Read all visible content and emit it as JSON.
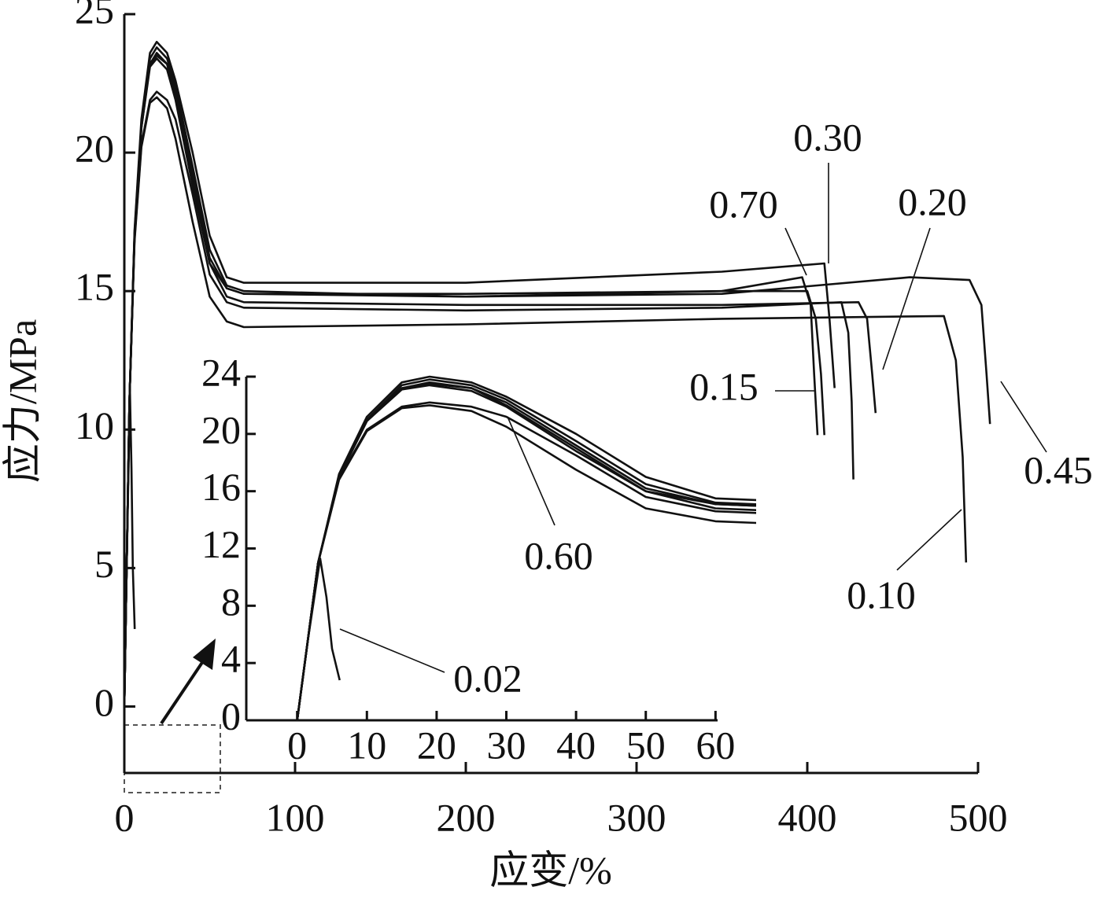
{
  "chart_data": {
    "type": "line",
    "xlabel": "应变/%",
    "ylabel": "应力/MPa",
    "xlim": [
      0,
      500
    ],
    "ylim": [
      -2.4,
      25
    ],
    "xticks": [
      0,
      100,
      200,
      300,
      400,
      500
    ],
    "yticks": [
      0,
      5,
      10,
      15,
      20,
      25
    ],
    "inset": {
      "xlim": [
        -7.3,
        60.3
      ],
      "ylim": [
        0,
        24
      ],
      "xticks": [
        0,
        10,
        20,
        30,
        40,
        50,
        60
      ],
      "yticks": [
        0,
        4,
        8,
        12,
        16,
        20,
        24
      ]
    },
    "series": [
      {
        "name": "0.02",
        "color": "#111111",
        "x": [
          0,
          1.5,
          3.3,
          4.2,
          5,
          6.1
        ],
        "values": [
          0,
          5.5,
          11.3,
          8.6,
          5,
          2.8
        ]
      },
      {
        "name": "0.10",
        "color": "#111111",
        "x": [
          0,
          3,
          6,
          10,
          15,
          19,
          25,
          30,
          40,
          50,
          60,
          70,
          200,
          350,
          480,
          487,
          491,
          493
        ],
        "values": [
          0,
          11,
          16.8,
          20.2,
          21.8,
          22.0,
          21.6,
          20.5,
          17.5,
          14.8,
          13.9,
          13.7,
          13.8,
          14.0,
          14.1,
          12.5,
          9,
          5.2
        ]
      },
      {
        "name": "0.15",
        "color": "#111111",
        "x": [
          0,
          3,
          6,
          10,
          15,
          19,
          25,
          30,
          40,
          50,
          60,
          70,
          200,
          350,
          400,
          405,
          408,
          410
        ],
        "values": [
          0,
          11,
          17,
          20.9,
          23.1,
          23.4,
          23.0,
          21.9,
          18.8,
          16,
          15.1,
          14.9,
          14.9,
          15.0,
          15.0,
          14,
          12,
          9.8
        ]
      },
      {
        "name": "0.20",
        "color": "#111111",
        "x": [
          0,
          3,
          6,
          10,
          15,
          19,
          25,
          30,
          40,
          50,
          60,
          70,
          200,
          350,
          430,
          435,
          438,
          440
        ],
        "values": [
          0,
          11,
          17,
          20.9,
          23.2,
          23.6,
          23.2,
          22,
          19,
          16,
          14.8,
          14.6,
          14.5,
          14.5,
          14.6,
          14,
          12,
          10.6
        ]
      },
      {
        "name": "0.30",
        "color": "#111111",
        "x": [
          0,
          3,
          6,
          10,
          15,
          19,
          25,
          30,
          40,
          50,
          60,
          70,
          200,
          350,
          410,
          413,
          416
        ],
        "values": [
          0,
          11,
          17.2,
          21.2,
          23.6,
          24.0,
          23.6,
          22.6,
          20,
          17,
          15.5,
          15.3,
          15.3,
          15.7,
          16.0,
          14,
          11.5
        ]
      },
      {
        "name": "0.45",
        "color": "#111111",
        "x": [
          0,
          3,
          6,
          10,
          15,
          19,
          25,
          30,
          40,
          50,
          60,
          70,
          200,
          350,
          460,
          495,
          502,
          505,
          507
        ],
        "values": [
          0,
          11,
          17.1,
          21,
          23.4,
          23.8,
          23.4,
          22.4,
          19.5,
          16.5,
          15.2,
          15.0,
          14.8,
          14.9,
          15.5,
          15.4,
          14.5,
          12,
          10.2
        ]
      },
      {
        "name": "0.60",
        "color": "#111111",
        "x": [
          0,
          3,
          6,
          10,
          15,
          19,
          25,
          30,
          40,
          50,
          60,
          70,
          200,
          350,
          420,
          424,
          426,
          427
        ],
        "values": [
          0,
          11,
          16.9,
          20.3,
          21.9,
          22.2,
          21.9,
          21.2,
          18.5,
          15.6,
          14.6,
          14.4,
          14.3,
          14.4,
          14.6,
          13.5,
          11,
          8.2
        ]
      },
      {
        "name": "0.70",
        "color": "#111111",
        "x": [
          0,
          3,
          6,
          10,
          15,
          19,
          25,
          30,
          40,
          50,
          60,
          70,
          200,
          350,
          397,
          402,
          404,
          406
        ],
        "values": [
          0,
          11,
          17,
          21,
          23.2,
          23.5,
          23.2,
          22.2,
          19.2,
          16.2,
          15.1,
          14.9,
          14.8,
          15.0,
          15.5,
          14.5,
          12,
          9.8
        ]
      }
    ]
  }
}
